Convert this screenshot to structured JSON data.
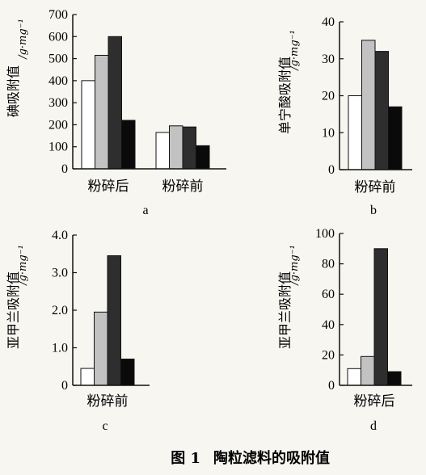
{
  "figure": {
    "caption_label": "图 1",
    "caption_text": "陶粒滤料的吸附值"
  },
  "palette": {
    "white": "#ffffff",
    "light_gray": "#c2c2c2",
    "dark_gray": "#2e2e2e",
    "black": "#0a0a0a",
    "stroke": "#111111"
  },
  "chart_data": [
    {
      "type": "bar",
      "panel_label": "a",
      "ylabel": "碘吸附值",
      "yunit": "/g·mg⁻¹",
      "categories": [
        "粉碎后",
        "粉碎前"
      ],
      "ylim": [
        0,
        700
      ],
      "yticks": [
        0,
        100,
        200,
        300,
        400,
        500,
        600,
        700
      ],
      "series": [
        {
          "values": [
            400,
            165
          ]
        },
        {
          "values": [
            515,
            195
          ]
        },
        {
          "values": [
            600,
            190
          ]
        },
        {
          "values": [
            220,
            105
          ]
        }
      ]
    },
    {
      "type": "bar",
      "panel_label": "b",
      "ylabel": "单宁酸吸附值",
      "yunit": "/g·mg⁻¹",
      "categories": [
        "粉碎前"
      ],
      "ylim": [
        0,
        40
      ],
      "yticks": [
        0,
        10,
        20,
        30,
        40
      ],
      "series": [
        {
          "values": [
            20
          ]
        },
        {
          "values": [
            35
          ]
        },
        {
          "values": [
            32
          ]
        },
        {
          "values": [
            17
          ]
        }
      ]
    },
    {
      "type": "bar",
      "panel_label": "c",
      "ylabel": "亚甲兰吸附值",
      "yunit": "/g·mg⁻¹",
      "categories": [
        "粉碎前"
      ],
      "ylim": [
        0,
        4.0
      ],
      "yticks": [
        "0",
        "1.0",
        "2.0",
        "3.0",
        "4.0"
      ],
      "series": [
        {
          "values": [
            0.45
          ]
        },
        {
          "values": [
            1.95
          ]
        },
        {
          "values": [
            3.45
          ]
        },
        {
          "values": [
            0.7
          ]
        }
      ]
    },
    {
      "type": "bar",
      "panel_label": "d",
      "ylabel": "亚甲兰吸附值",
      "yunit": "/g·mg⁻¹",
      "categories": [
        "粉碎后"
      ],
      "ylim": [
        0,
        100
      ],
      "yticks": [
        0,
        20,
        40,
        60,
        80,
        100
      ],
      "series": [
        {
          "values": [
            11
          ]
        },
        {
          "values": [
            19
          ]
        },
        {
          "values": [
            90
          ]
        },
        {
          "values": [
            9
          ]
        }
      ]
    }
  ]
}
